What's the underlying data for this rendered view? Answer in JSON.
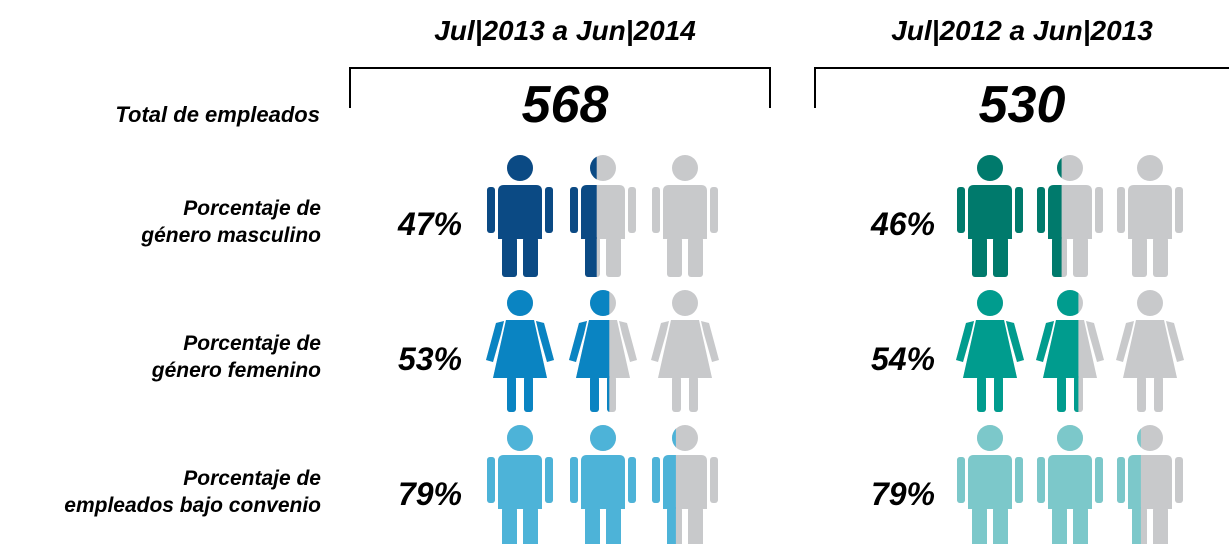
{
  "chart_data": {
    "type": "pictogram",
    "total_label": "Total de empleados",
    "categories": [
      "Porcentaje de\ngénero masculino",
      "Porcentaje de\ngénero femenino",
      "Porcentaje de\nempleados bajo convenio"
    ],
    "shapes": [
      "male",
      "female",
      "male"
    ],
    "empty_color": "#c8c9cb",
    "series": [
      {
        "name": "Jul|2013 a Jun|2014",
        "total": 568,
        "colors": [
          "#0b4a84",
          "#0a84c2",
          "#4db3d8"
        ],
        "values": [
          47,
          53,
          79
        ],
        "value_labels": [
          "47%",
          "53%",
          "79%"
        ]
      },
      {
        "name": "Jul|2012 a Jun|2013",
        "total": 530,
        "colors": [
          "#007a6c",
          "#009c8e",
          "#7cc8ca"
        ],
        "values": [
          46,
          54,
          79
        ],
        "value_labels": [
          "46%",
          "54%",
          "79%"
        ]
      }
    ]
  }
}
